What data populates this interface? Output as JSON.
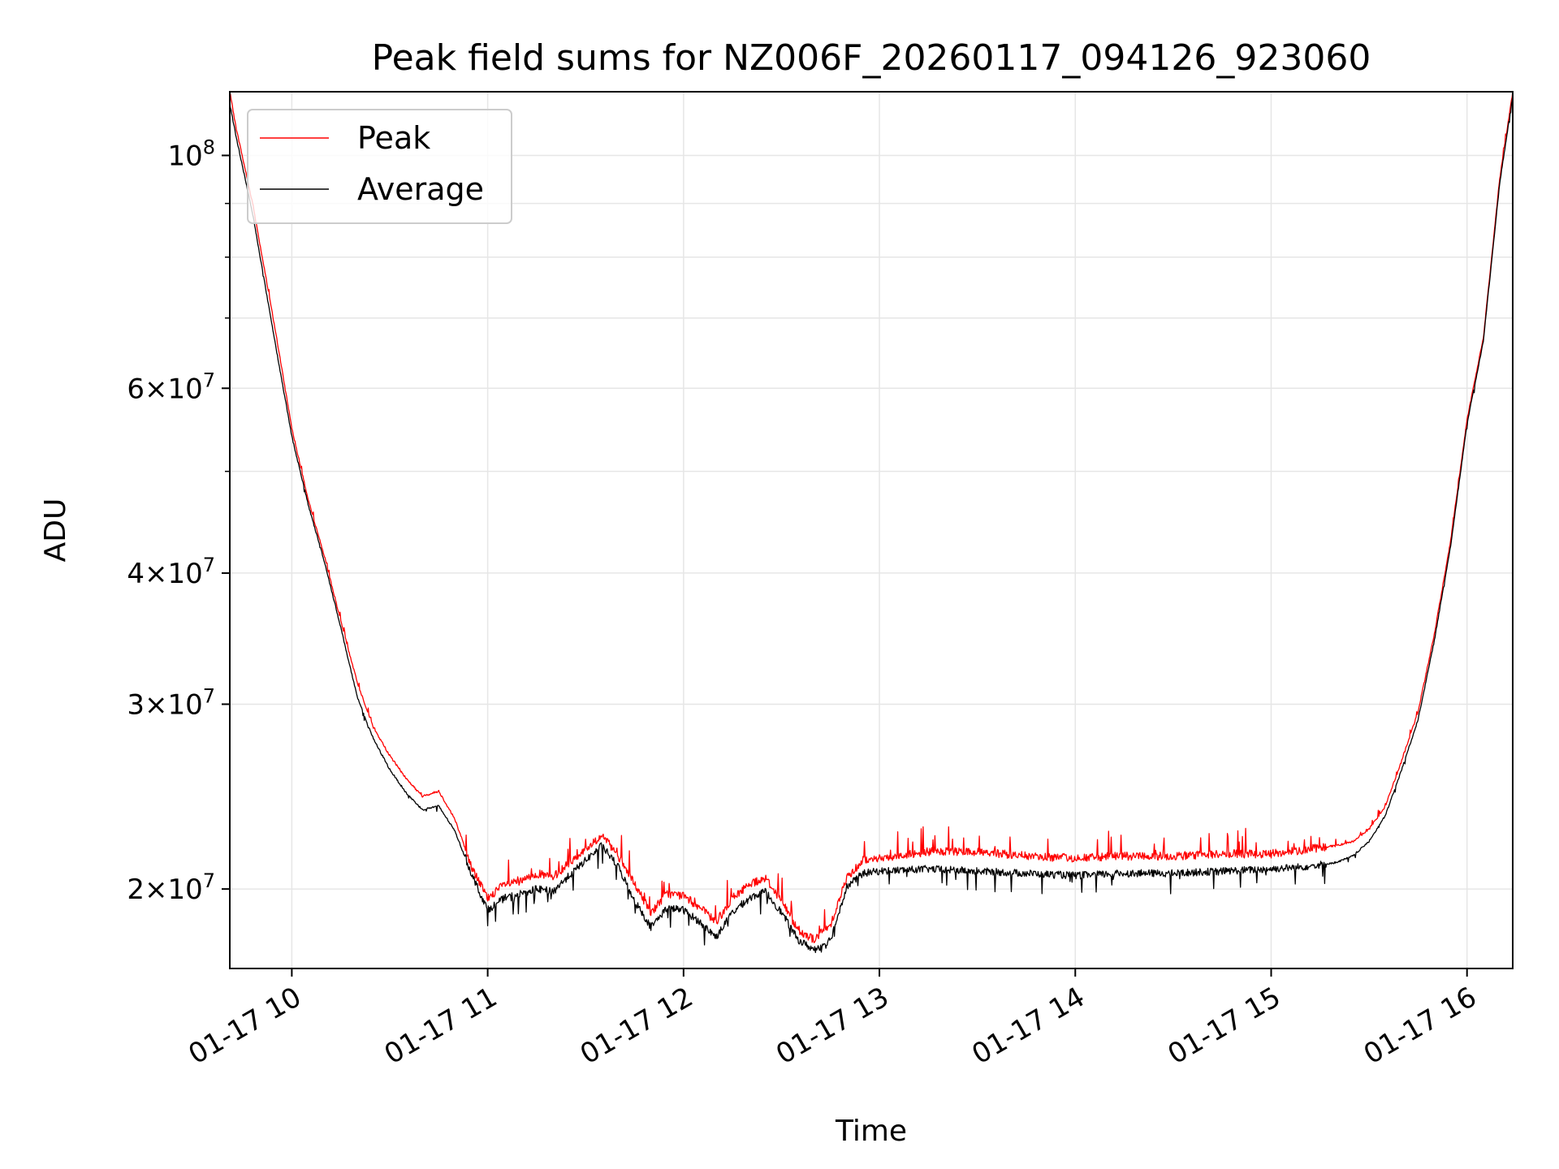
{
  "chart_data": {
    "type": "line",
    "title": "Peak field sums for NZ006F_20260117_094126_923060",
    "xlabel": "Time",
    "ylabel": "ADU",
    "yscale": "log",
    "grid": true,
    "legend_position": "top-left",
    "xlim": [
      "2026-01-17 09:41",
      "2026-01-17 16:14"
    ],
    "ylim": [
      16800000,
      115000000
    ],
    "x_ticks": [
      {
        "value": "2026-01-17 10:00",
        "label": "01-17 10"
      },
      {
        "value": "2026-01-17 11:00",
        "label": "01-17 11"
      },
      {
        "value": "2026-01-17 12:00",
        "label": "01-17 12"
      },
      {
        "value": "2026-01-17 13:00",
        "label": "01-17 13"
      },
      {
        "value": "2026-01-17 14:00",
        "label": "01-17 14"
      },
      {
        "value": "2026-01-17 15:00",
        "label": "01-17 15"
      },
      {
        "value": "2026-01-17 16:00",
        "label": "01-17 16"
      }
    ],
    "y_major_ticks": [
      {
        "value": 20000000,
        "label_mantissa": "2",
        "label_base": "10",
        "label_exp": "7"
      },
      {
        "value": 30000000,
        "label_mantissa": "3",
        "label_base": "10",
        "label_exp": "7"
      },
      {
        "value": 40000000,
        "label_mantissa": "4",
        "label_base": "10",
        "label_exp": "7"
      },
      {
        "value": 60000000,
        "label_mantissa": "6",
        "label_base": "10",
        "label_exp": "7"
      },
      {
        "value": 100000000,
        "label_mantissa": "",
        "label_base": "10",
        "label_exp": "8"
      }
    ],
    "y_minor_ticks": [
      50000000,
      70000000,
      80000000,
      90000000
    ],
    "series": [
      {
        "name": "Peak",
        "color": "#ff0000",
        "x": [
          "2026-01-17 09:41",
          "2026-01-17 09:43",
          "2026-01-17 09:48",
          "2026-01-17 09:55",
          "2026-01-17 10:00",
          "2026-01-17 10:05",
          "2026-01-17 10:10",
          "2026-01-17 10:15",
          "2026-01-17 10:20",
          "2026-01-17 10:25",
          "2026-01-17 10:30",
          "2026-01-17 10:35",
          "2026-01-17 10:40",
          "2026-01-17 10:45",
          "2026-01-17 10:50",
          "2026-01-17 10:55",
          "2026-01-17 11:00",
          "2026-01-17 11:05",
          "2026-01-17 11:10",
          "2026-01-17 11:15",
          "2026-01-17 11:20",
          "2026-01-17 11:25",
          "2026-01-17 11:30",
          "2026-01-17 11:35",
          "2026-01-17 11:40",
          "2026-01-17 11:45",
          "2026-01-17 11:50",
          "2026-01-17 11:55",
          "2026-01-17 12:00",
          "2026-01-17 12:05",
          "2026-01-17 12:10",
          "2026-01-17 12:15",
          "2026-01-17 12:20",
          "2026-01-17 12:25",
          "2026-01-17 12:30",
          "2026-01-17 12:35",
          "2026-01-17 12:40",
          "2026-01-17 12:45",
          "2026-01-17 12:50",
          "2026-01-17 12:55",
          "2026-01-17 13:00",
          "2026-01-17 13:15",
          "2026-01-17 13:30",
          "2026-01-17 13:45",
          "2026-01-17 14:00",
          "2026-01-17 14:15",
          "2026-01-17 14:30",
          "2026-01-17 14:45",
          "2026-01-17 15:00",
          "2026-01-17 15:10",
          "2026-01-17 15:20",
          "2026-01-17 15:25",
          "2026-01-17 15:30",
          "2026-01-17 15:35",
          "2026-01-17 15:40",
          "2026-01-17 15:45",
          "2026-01-17 15:50",
          "2026-01-17 15:55",
          "2026-01-17 16:00",
          "2026-01-17 16:05",
          "2026-01-17 16:10",
          "2026-01-17 16:14"
        ],
        "values": [
          115000000,
          106000000,
          90000000,
          68000000,
          55000000,
          47000000,
          41500000,
          36000000,
          31500000,
          28500000,
          26800000,
          25500000,
          24500000,
          24800000,
          23300000,
          21000000,
          19600000,
          20200000,
          20300000,
          20700000,
          20500000,
          21200000,
          21800000,
          22500000,
          21500000,
          20200000,
          19000000,
          19800000,
          19700000,
          19200000,
          18600000,
          19600000,
          20200000,
          20500000,
          19500000,
          18300000,
          17900000,
          18500000,
          20500000,
          21300000,
          21400000,
          21700000,
          21700000,
          21500000,
          21400000,
          21500000,
          21500000,
          21600000,
          21600000,
          21800000,
          22000000,
          22200000,
          22800000,
          24000000,
          26500000,
          29500000,
          35000000,
          43000000,
          56000000,
          67000000,
          95000000,
          115000000
        ]
      },
      {
        "name": "Average",
        "color": "#000000",
        "x": [
          "2026-01-17 09:41",
          "2026-01-17 09:43",
          "2026-01-17 09:48",
          "2026-01-17 09:55",
          "2026-01-17 10:00",
          "2026-01-17 10:05",
          "2026-01-17 10:10",
          "2026-01-17 10:15",
          "2026-01-17 10:20",
          "2026-01-17 10:25",
          "2026-01-17 10:30",
          "2026-01-17 10:35",
          "2026-01-17 10:40",
          "2026-01-17 10:45",
          "2026-01-17 10:50",
          "2026-01-17 10:55",
          "2026-01-17 11:00",
          "2026-01-17 11:05",
          "2026-01-17 11:10",
          "2026-01-17 11:15",
          "2026-01-17 11:20",
          "2026-01-17 11:25",
          "2026-01-17 11:30",
          "2026-01-17 11:35",
          "2026-01-17 11:40",
          "2026-01-17 11:45",
          "2026-01-17 11:50",
          "2026-01-17 11:55",
          "2026-01-17 12:00",
          "2026-01-17 12:05",
          "2026-01-17 12:10",
          "2026-01-17 12:15",
          "2026-01-17 12:20",
          "2026-01-17 12:25",
          "2026-01-17 12:30",
          "2026-01-17 12:35",
          "2026-01-17 12:40",
          "2026-01-17 12:45",
          "2026-01-17 12:50",
          "2026-01-17 12:55",
          "2026-01-17 13:00",
          "2026-01-17 13:15",
          "2026-01-17 13:30",
          "2026-01-17 13:45",
          "2026-01-17 14:00",
          "2026-01-17 14:15",
          "2026-01-17 14:30",
          "2026-01-17 14:45",
          "2026-01-17 15:00",
          "2026-01-17 15:10",
          "2026-01-17 15:20",
          "2026-01-17 15:25",
          "2026-01-17 15:30",
          "2026-01-17 15:35",
          "2026-01-17 15:40",
          "2026-01-17 15:45",
          "2026-01-17 15:50",
          "2026-01-17 15:55",
          "2026-01-17 16:00",
          "2026-01-17 16:05",
          "2026-01-17 16:10",
          "2026-01-17 16:14"
        ],
        "values": [
          112000000,
          104000000,
          88000000,
          66000000,
          54000000,
          46500000,
          41000000,
          35500000,
          30500000,
          27800000,
          26000000,
          24700000,
          23800000,
          24000000,
          22700000,
          20700000,
          19100000,
          19600000,
          19800000,
          20000000,
          19900000,
          20600000,
          21300000,
          22000000,
          21000000,
          19500000,
          18400000,
          19200000,
          19100000,
          18600000,
          18000000,
          19000000,
          19600000,
          19900000,
          19000000,
          17900000,
          17500000,
          17900000,
          20100000,
          20700000,
          20800000,
          20900000,
          20800000,
          20700000,
          20600000,
          20700000,
          20700000,
          20800000,
          20900000,
          21000000,
          21200000,
          21500000,
          22200000,
          23500000,
          26000000,
          29000000,
          34500000,
          42500000,
          55500000,
          66500000,
          94000000,
          114000000
        ]
      }
    ]
  }
}
